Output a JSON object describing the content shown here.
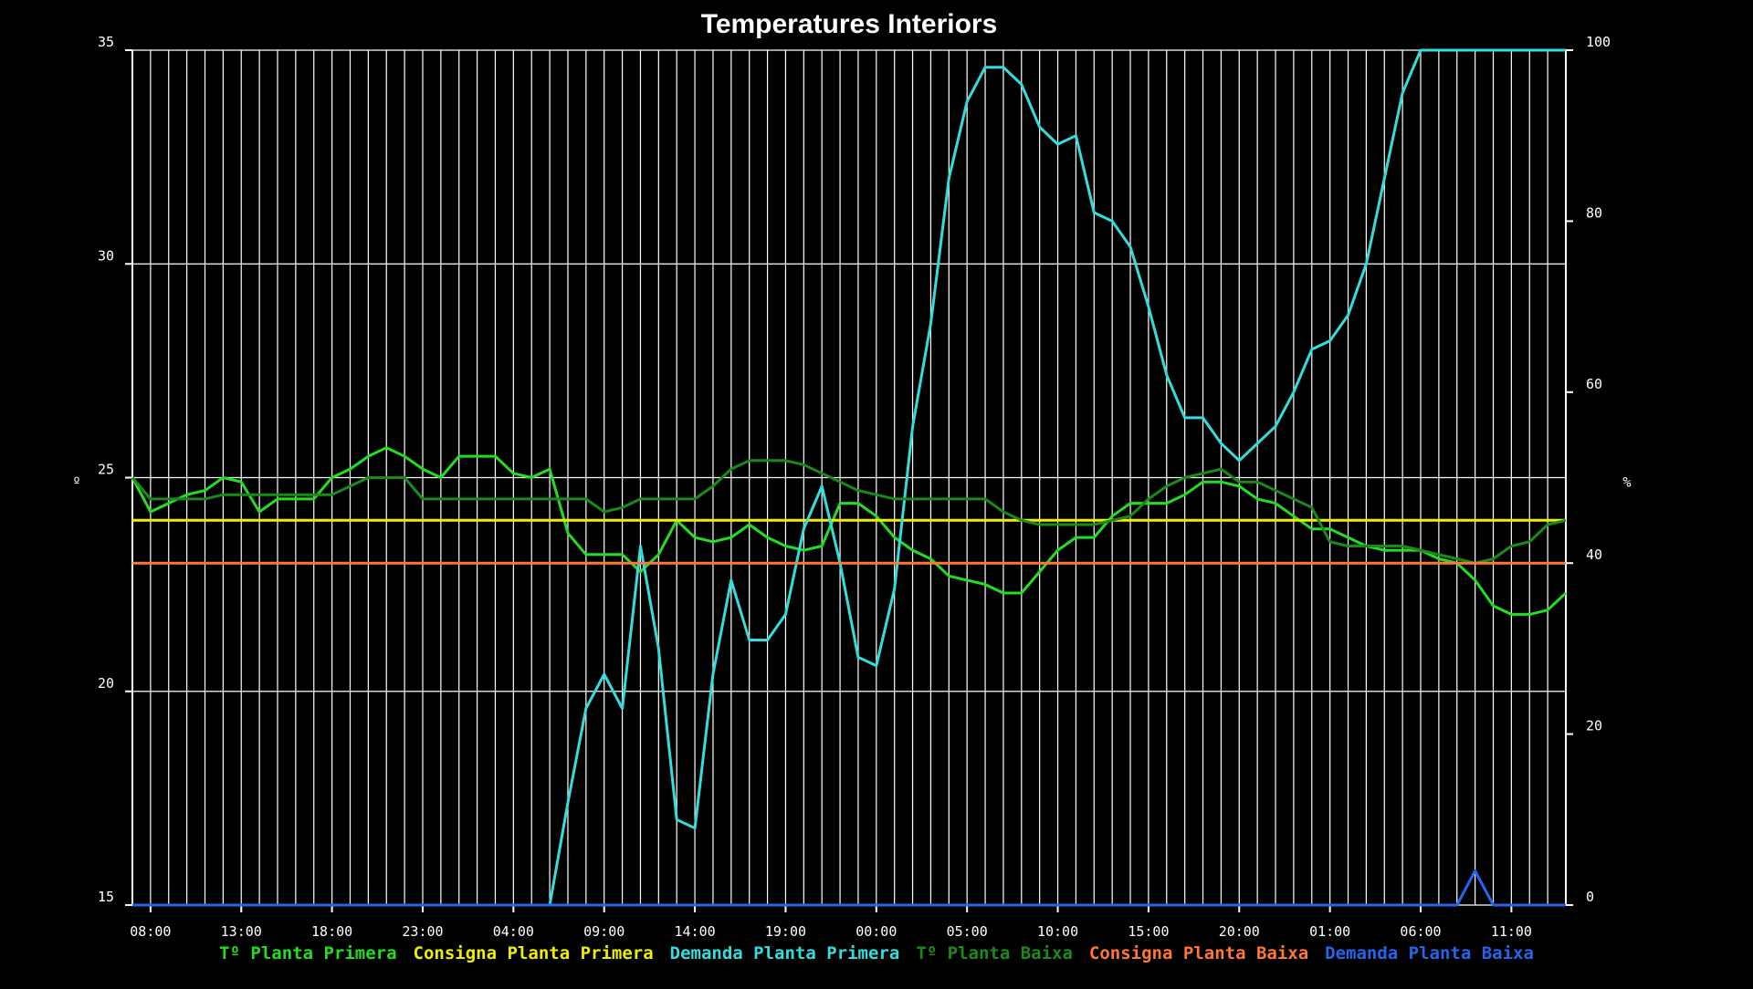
{
  "chart_data": {
    "type": "line",
    "title": "Temperatures Interiors",
    "ylabel_left": "º",
    "ylabel_right": "%",
    "ylim_left": [
      15,
      35
    ],
    "ylim_right": [
      0,
      100
    ],
    "yticks_left": [
      15,
      20,
      25,
      30,
      35
    ],
    "yticks_right": [
      0,
      20,
      40,
      60,
      80,
      100
    ],
    "xlim": [
      0,
      79
    ],
    "x_unit": "hour index from 07:00 of first day, ticks every 5 hours",
    "xtick_labels": [
      "08:00",
      "13:00",
      "18:00",
      "23:00",
      "04:00",
      "09:00",
      "14:00",
      "19:00",
      "00:00",
      "05:00",
      "10:00",
      "15:00",
      "20:00",
      "01:00",
      "06:00",
      "11:00"
    ],
    "xtick_positions": [
      1,
      6,
      11,
      16,
      21,
      26,
      31,
      36,
      41,
      46,
      51,
      56,
      61,
      66,
      71,
      76
    ],
    "grid": true,
    "legend_position": "bottom",
    "series": [
      {
        "name": "Tº Planta Primera",
        "axis": "left",
        "color": "#22dd22",
        "x": [
          0,
          1,
          2,
          3,
          4,
          5,
          6,
          7,
          8,
          9,
          10,
          11,
          12,
          13,
          14,
          15,
          16,
          17,
          18,
          19,
          20,
          21,
          22,
          23,
          24,
          25,
          26,
          27,
          28,
          29,
          30,
          31,
          32,
          33,
          34,
          35,
          36,
          37,
          38,
          39,
          40,
          41,
          42,
          43,
          44,
          45,
          46,
          47,
          48,
          49,
          50,
          51,
          52,
          53,
          54,
          55,
          56,
          57,
          58,
          59,
          60,
          61,
          62,
          63,
          64,
          65,
          66,
          67,
          68,
          69,
          70,
          71,
          72,
          73,
          74,
          75,
          76,
          77,
          78,
          79
        ],
        "y": [
          25.0,
          24.2,
          24.4,
          24.6,
          24.7,
          25.0,
          24.9,
          24.2,
          24.5,
          24.5,
          24.5,
          25.0,
          25.2,
          25.5,
          25.7,
          25.5,
          25.2,
          25.0,
          25.5,
          25.5,
          25.5,
          25.1,
          25.0,
          25.2,
          23.7,
          23.2,
          23.2,
          23.2,
          22.8,
          23.2,
          24.0,
          23.6,
          23.5,
          23.6,
          23.9,
          23.6,
          23.4,
          23.3,
          23.4,
          24.4,
          24.4,
          24.1,
          23.6,
          23.3,
          23.1,
          22.7,
          22.6,
          22.5,
          22.3,
          22.3,
          22.8,
          23.3,
          23.6,
          23.6,
          24.1,
          24.4,
          24.4,
          24.4,
          24.6,
          24.9,
          24.9,
          24.8,
          24.5,
          24.4,
          24.1,
          23.8,
          23.8,
          23.6,
          23.4,
          23.3,
          23.3,
          23.3,
          23.1,
          23.0,
          22.6,
          22.0,
          21.8,
          21.8,
          21.9,
          22.3
        ]
      },
      {
        "name": "Consigna Planta Primera",
        "axis": "left",
        "color": "#eeee00",
        "x": [
          0,
          79
        ],
        "y": [
          24.0,
          24.0
        ]
      },
      {
        "name": "Demanda Planta Primera",
        "axis": "right",
        "color": "#33dddd",
        "x": [
          0,
          23,
          24,
          25,
          26,
          27,
          28,
          29,
          30,
          31,
          32,
          33,
          34,
          35,
          36,
          37,
          38,
          39,
          40,
          41,
          42,
          43,
          44,
          45,
          46,
          47,
          48,
          49,
          50,
          51,
          52,
          53,
          54,
          55,
          56,
          57,
          58,
          59,
          60,
          61,
          62,
          63,
          64,
          65,
          66,
          67,
          68,
          69,
          70,
          71,
          72,
          73,
          74,
          75,
          76,
          77,
          78,
          79
        ],
        "y": [
          0,
          0,
          12,
          23,
          27,
          23,
          42,
          30,
          10,
          9,
          27,
          38,
          31,
          31,
          34,
          44,
          49,
          40,
          29,
          28,
          37,
          56,
          68,
          85,
          94,
          98,
          98,
          96,
          91,
          89,
          90,
          81,
          80,
          77,
          70,
          62,
          57,
          57,
          54,
          52,
          54,
          56,
          60,
          65,
          66,
          69,
          75,
          85,
          95,
          100,
          100,
          100,
          100,
          100,
          100,
          100,
          100,
          100
        ]
      },
      {
        "name": "Tº Planta Baixa",
        "axis": "left",
        "color": "#1a8a1a",
        "x": [
          0,
          1,
          2,
          3,
          4,
          5,
          6,
          7,
          8,
          9,
          10,
          11,
          12,
          13,
          14,
          15,
          16,
          17,
          18,
          19,
          20,
          21,
          22,
          23,
          24,
          25,
          26,
          27,
          28,
          29,
          30,
          31,
          32,
          33,
          34,
          35,
          36,
          37,
          38,
          39,
          40,
          41,
          42,
          43,
          44,
          45,
          46,
          47,
          48,
          49,
          50,
          51,
          52,
          53,
          54,
          55,
          56,
          57,
          58,
          59,
          60,
          61,
          62,
          63,
          64,
          65,
          66,
          67,
          68,
          69,
          70,
          71,
          72,
          73,
          74,
          75,
          76,
          77,
          78,
          79
        ],
        "y": [
          25.0,
          24.5,
          24.5,
          24.5,
          24.5,
          24.6,
          24.6,
          24.6,
          24.6,
          24.6,
          24.6,
          24.6,
          24.8,
          25.0,
          25.0,
          25.0,
          24.5,
          24.5,
          24.5,
          24.5,
          24.5,
          24.5,
          24.5,
          24.5,
          24.5,
          24.5,
          24.2,
          24.3,
          24.5,
          24.5,
          24.5,
          24.5,
          24.8,
          25.2,
          25.4,
          25.4,
          25.4,
          25.3,
          25.1,
          24.9,
          24.7,
          24.6,
          24.5,
          24.5,
          24.5,
          24.5,
          24.5,
          24.5,
          24.2,
          24.0,
          23.9,
          23.9,
          23.9,
          23.9,
          24.0,
          24.1,
          24.5,
          24.8,
          25.0,
          25.1,
          25.2,
          24.9,
          24.9,
          24.7,
          24.5,
          24.3,
          23.5,
          23.4,
          23.4,
          23.4,
          23.4,
          23.3,
          23.2,
          23.1,
          23.0,
          23.1,
          23.4,
          23.5,
          23.9,
          24.0
        ]
      },
      {
        "name": "Consigna Planta Baixa",
        "axis": "left",
        "color": "#ff7733",
        "x": [
          0,
          79
        ],
        "y": [
          23.0,
          23.0
        ]
      },
      {
        "name": "Demanda Planta Baixa",
        "axis": "right",
        "color": "#2266ee",
        "x": [
          0,
          73,
          74,
          75,
          79
        ],
        "y": [
          0,
          0,
          4,
          0,
          0
        ]
      }
    ]
  }
}
